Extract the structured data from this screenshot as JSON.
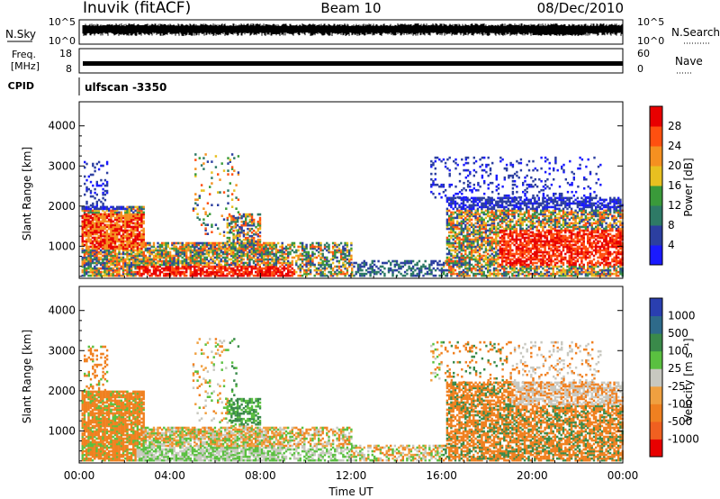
{
  "header": {
    "station": "Inuvik (fitACF)",
    "beam": "Beam 10",
    "date": "08/Dec/2010"
  },
  "status_panels": {
    "nsky_label": "N.Sky",
    "nsearch_label": "N.Search",
    "freq_label_line1": "Freq.",
    "freq_label_line2": "[MHz]",
    "nave_label": "Nave",
    "cpid_label": "CPID",
    "cpid_value": "ulfscan -3350",
    "nsky_ticks": [
      "10^5",
      "10^0"
    ],
    "nsearch_ticks": [
      "10^5",
      "10^0"
    ],
    "freq_ticks": [
      "18",
      "8"
    ],
    "nave_ticks": [
      "60",
      "0"
    ]
  },
  "colors": {
    "power_scale": [
      "#1a1aff",
      "#2c3fa0",
      "#2e7a66",
      "#3a9a3a",
      "#e8c020",
      "#f59020",
      "#ff5010",
      "#e80000"
    ],
    "velocity_scale": [
      "#2a3fb0",
      "#2e6a8a",
      "#3a8a4a",
      "#5ac040",
      "#c8c8c0",
      "#f0a040",
      "#f08020",
      "#f06020",
      "#e80000"
    ]
  },
  "chart_data": [
    {
      "type": "heatmap",
      "name": "power",
      "xlabel": "Time UT",
      "ylabel": "Slant Range [km]",
      "xlim": [
        0,
        24
      ],
      "ylim": [
        200,
        4600
      ],
      "y_ticks": [
        "1000",
        "2000",
        "3000",
        "4000"
      ],
      "colorbar": {
        "label": "Power [dB]",
        "ticks": [
          "28",
          "24",
          "20",
          "16",
          "12",
          "8",
          "4"
        ]
      }
    },
    {
      "type": "heatmap",
      "name": "velocity",
      "xlabel": "Time UT",
      "ylabel": "Slant Range [km]",
      "xlim": [
        0,
        24
      ],
      "ylim": [
        200,
        4600
      ],
      "x_ticks": [
        "00:00",
        "04:00",
        "08:00",
        "12:00",
        "16:00",
        "20:00",
        "00:00"
      ],
      "y_ticks": [
        "1000",
        "2000",
        "3000",
        "4000"
      ],
      "colorbar": {
        "label": "Velocity [m s⁻¹]",
        "ticks": [
          "1000",
          "500",
          "100",
          "25",
          "-25",
          "-100",
          "-500",
          "-1000"
        ]
      }
    }
  ]
}
